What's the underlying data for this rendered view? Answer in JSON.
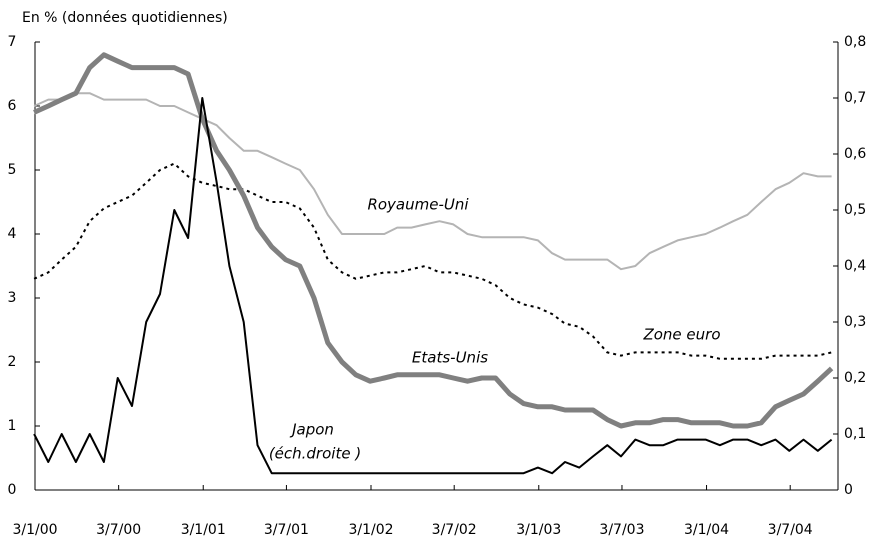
{
  "chart_data": {
    "type": "line",
    "title": "En % (données quotidiennes)",
    "annotations": [
      "(éch.droite )"
    ],
    "x": [
      "2000-01-01",
      "2000-02-01",
      "2000-03-01",
      "2000-04-01",
      "2000-05-01",
      "2000-06-01",
      "2000-07-01",
      "2000-08-01",
      "2000-09-01",
      "2000-10-01",
      "2000-11-01",
      "2000-12-01",
      "2001-01-01",
      "2001-02-01",
      "2001-03-01",
      "2001-04-01",
      "2001-05-01",
      "2001-06-01",
      "2001-07-01",
      "2001-08-01",
      "2001-09-01",
      "2001-10-01",
      "2001-11-01",
      "2001-12-01",
      "2002-01-01",
      "2002-02-01",
      "2002-03-01",
      "2002-04-01",
      "2002-05-01",
      "2002-06-01",
      "2002-07-01",
      "2002-08-01",
      "2002-09-01",
      "2002-10-01",
      "2002-11-01",
      "2002-12-01",
      "2003-01-01",
      "2003-02-01",
      "2003-03-01",
      "2003-04-01",
      "2003-05-01",
      "2003-06-01",
      "2003-07-01",
      "2003-08-01",
      "2003-09-01",
      "2003-10-01",
      "2003-11-01",
      "2003-12-01",
      "2004-01-01",
      "2004-02-01",
      "2004-03-01",
      "2004-04-01",
      "2004-05-01",
      "2004-06-01",
      "2004-07-01",
      "2004-08-01",
      "2004-09-01",
      "2004-10-01"
    ],
    "series": [
      {
        "name": "Royaume-Uni",
        "color": "#b4b4b4",
        "width": 2,
        "dash": "",
        "values": [
          6.0,
          6.1,
          6.1,
          6.2,
          6.2,
          6.1,
          6.1,
          6.1,
          6.1,
          6.0,
          6.0,
          5.9,
          5.8,
          5.7,
          5.5,
          5.3,
          5.3,
          5.2,
          5.1,
          5.0,
          4.7,
          4.3,
          4.0,
          4.0,
          4.0,
          4.0,
          4.1,
          4.1,
          4.15,
          4.2,
          4.15,
          4.0,
          3.95,
          3.95,
          3.95,
          3.95,
          3.9,
          3.7,
          3.6,
          3.6,
          3.6,
          3.6,
          3.45,
          3.5,
          3.7,
          3.8,
          3.9,
          3.95,
          4.0,
          4.1,
          4.2,
          4.3,
          4.5,
          4.7,
          4.8,
          4.95,
          4.9,
          4.9
        ]
      },
      {
        "name": "Zone euro",
        "color": "#000000",
        "width": 2,
        "dash": "3,4",
        "values": [
          3.3,
          3.4,
          3.6,
          3.8,
          4.2,
          4.4,
          4.5,
          4.6,
          4.8,
          5.0,
          5.1,
          4.9,
          4.8,
          4.75,
          4.7,
          4.7,
          4.6,
          4.5,
          4.5,
          4.4,
          4.1,
          3.6,
          3.4,
          3.3,
          3.35,
          3.4,
          3.4,
          3.45,
          3.5,
          3.4,
          3.4,
          3.35,
          3.3,
          3.2,
          3.0,
          2.9,
          2.85,
          2.75,
          2.6,
          2.55,
          2.4,
          2.15,
          2.1,
          2.15,
          2.15,
          2.15,
          2.15,
          2.1,
          2.1,
          2.05,
          2.05,
          2.05,
          2.05,
          2.1,
          2.1,
          2.1,
          2.1,
          2.15
        ]
      },
      {
        "name": "Etats-Unis",
        "color": "#808080",
        "width": 5,
        "dash": "",
        "values": [
          5.9,
          6.0,
          6.1,
          6.2,
          6.6,
          6.8,
          6.7,
          6.6,
          6.6,
          6.6,
          6.6,
          6.5,
          5.8,
          5.3,
          5.0,
          4.6,
          4.1,
          3.8,
          3.6,
          3.5,
          3.0,
          2.3,
          2.0,
          1.8,
          1.7,
          1.75,
          1.8,
          1.8,
          1.8,
          1.8,
          1.75,
          1.7,
          1.75,
          1.75,
          1.5,
          1.35,
          1.3,
          1.3,
          1.25,
          1.25,
          1.25,
          1.1,
          1.0,
          1.05,
          1.05,
          1.1,
          1.1,
          1.05,
          1.05,
          1.05,
          1.0,
          1.0,
          1.05,
          1.3,
          1.4,
          1.5,
          1.7,
          1.9
        ]
      },
      {
        "name": "Japon",
        "color": "#000000",
        "width": 2,
        "dash": "",
        "axis": "y2",
        "values": [
          0.1,
          0.05,
          0.1,
          0.05,
          0.1,
          0.05,
          0.2,
          0.15,
          0.3,
          0.35,
          0.5,
          0.45,
          0.7,
          0.55,
          0.4,
          0.3,
          0.08,
          0.03,
          0.03,
          0.03,
          0.03,
          0.03,
          0.03,
          0.03,
          0.03,
          0.03,
          0.03,
          0.03,
          0.03,
          0.03,
          0.03,
          0.03,
          0.03,
          0.03,
          0.03,
          0.03,
          0.04,
          0.03,
          0.05,
          0.04,
          0.06,
          0.08,
          0.06,
          0.09,
          0.08,
          0.08,
          0.09,
          0.09,
          0.09,
          0.08,
          0.09,
          0.09,
          0.08,
          0.09,
          0.07,
          0.09,
          0.07,
          0.09
        ]
      }
    ],
    "xlim": [
      "2000-01-03",
      "2004-10-15"
    ],
    "xticks": [
      {
        "value": "2000-01-03",
        "label": "3/1/00"
      },
      {
        "value": "2000-07-03",
        "label": "3/7/00"
      },
      {
        "value": "2001-01-03",
        "label": "3/1/01"
      },
      {
        "value": "2001-07-03",
        "label": "3/7/01"
      },
      {
        "value": "2002-01-03",
        "label": "3/1/02"
      },
      {
        "value": "2002-07-03",
        "label": "3/7/02"
      },
      {
        "value": "2003-01-03",
        "label": "3/1/03"
      },
      {
        "value": "2003-07-03",
        "label": "3/7/03"
      },
      {
        "value": "2004-01-03",
        "label": "3/1/04"
      },
      {
        "value": "2004-07-03",
        "label": "3/7/04"
      }
    ],
    "ylim": [
      0,
      7
    ],
    "yticks": [
      0,
      1,
      2,
      3,
      4,
      5,
      6,
      7
    ],
    "y2lim": [
      0,
      0.8
    ],
    "y2ticks": [
      0,
      {
        "value": 0.1,
        "label": "0,1"
      },
      {
        "value": 0.2,
        "label": "0,2"
      },
      {
        "value": 0.3,
        "label": "0,3"
      },
      {
        "value": 0.4,
        "label": "0,4"
      },
      {
        "value": 0.5,
        "label": "0,5"
      },
      {
        "value": 0.6,
        "label": "0,6"
      },
      {
        "value": 0.7,
        "label": "0,7"
      },
      {
        "value": 0.8,
        "label": "0,8"
      }
    ]
  }
}
